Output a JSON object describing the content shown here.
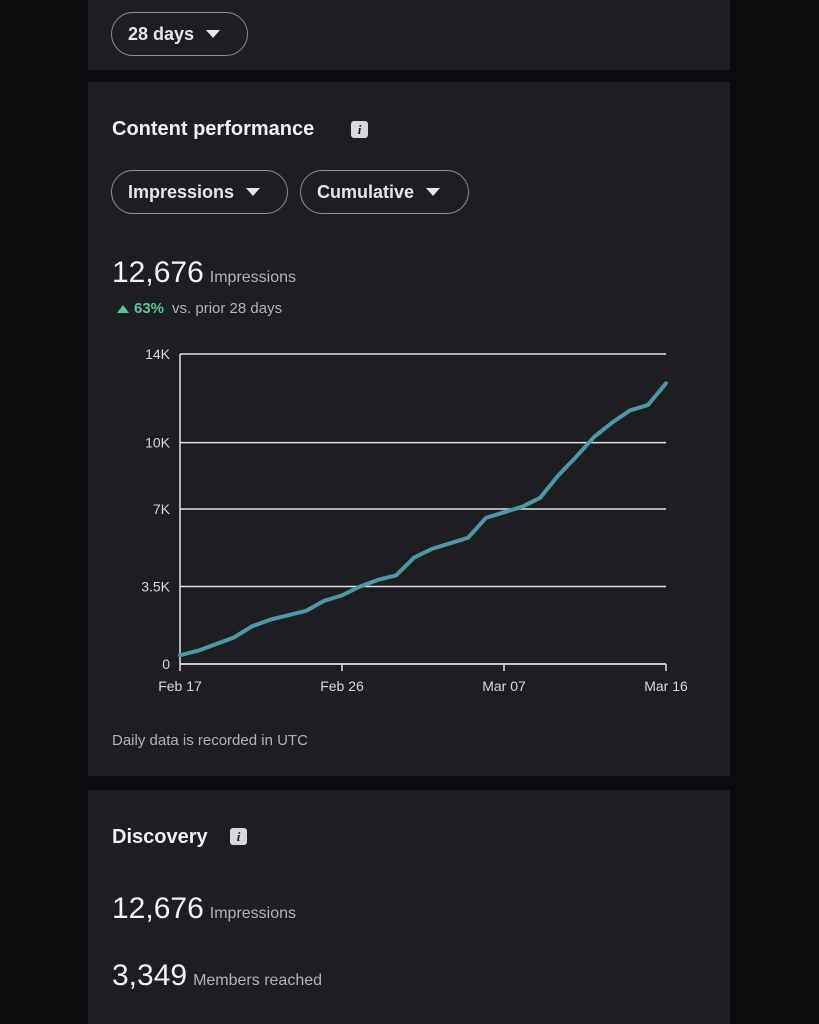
{
  "filter": {
    "period": "28 days"
  },
  "content_performance": {
    "title": "Content performance",
    "metric_dropdown": "Impressions",
    "mode_dropdown": "Cumulative",
    "total": "12,676",
    "total_label": "Impressions",
    "change": "63%",
    "change_label": "vs. prior 28 days",
    "footnote": "Daily data is recorded in UTC"
  },
  "chart_data": {
    "type": "line",
    "categories": [
      "Feb 17",
      null,
      null,
      null,
      null,
      null,
      null,
      null,
      null,
      "Feb 26",
      null,
      null,
      null,
      null,
      null,
      null,
      null,
      null,
      "Mar 07",
      null,
      null,
      null,
      null,
      null,
      null,
      null,
      null,
      "Mar 16"
    ],
    "values": [
      400,
      600,
      900,
      1200,
      1700,
      2000,
      2200,
      2400,
      2850,
      3100,
      3500,
      3800,
      4000,
      4800,
      5200,
      5450,
      5700,
      6600,
      6850,
      7100,
      7500,
      8500,
      9350,
      10250,
      10900,
      11450,
      11700,
      12676
    ],
    "color": "#4f97a6",
    "ylim": [
      0,
      14000
    ],
    "yticks": [
      0,
      {
        "value": 3500,
        "label": "3.5K"
      },
      {
        "value": 7000,
        "label": "7K"
      },
      {
        "value": 10000,
        "label": "10K"
      },
      {
        "value": 14000,
        "label": "14K"
      }
    ],
    "grid": true
  },
  "discovery": {
    "title": "Discovery",
    "stats": [
      {
        "value": "12,676",
        "label": "Impressions"
      },
      {
        "value": "3,349",
        "label": "Members reached"
      }
    ]
  }
}
